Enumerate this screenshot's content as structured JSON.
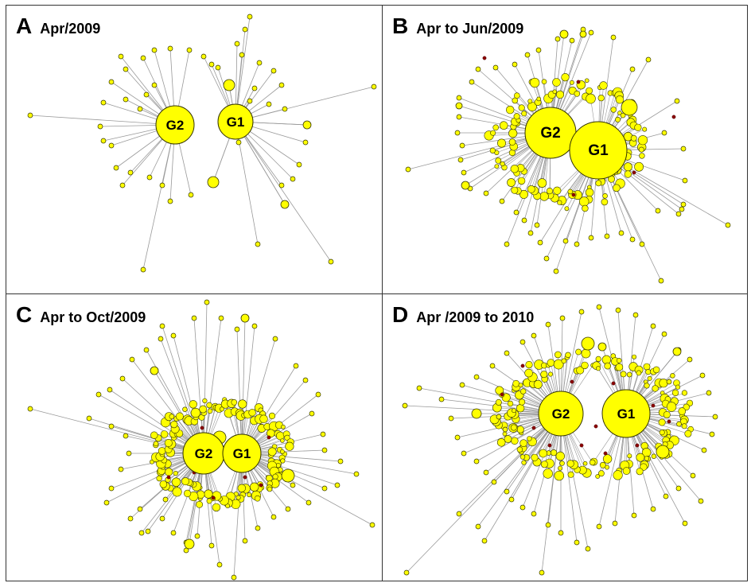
{
  "figure": {
    "panels": [
      {
        "letter": "A",
        "title": "Apr/2009",
        "hubs": [
          "G2",
          "G1"
        ]
      },
      {
        "letter": "B",
        "title": "Apr to Jun/2009",
        "hubs": [
          "G2",
          "G1"
        ]
      },
      {
        "letter": "C",
        "title": "Apr to Oct/2009",
        "hubs": [
          "G2",
          "G1"
        ]
      },
      {
        "letter": "D",
        "title": "Apr /2009 to 2010",
        "hubs": [
          "G2",
          "G1"
        ]
      }
    ]
  },
  "colors": {
    "node_fill": "#ffff00",
    "node_stroke": "#333300",
    "edge": "#9a9a9a",
    "red_node": "#8b0000",
    "border": "#333333"
  }
}
